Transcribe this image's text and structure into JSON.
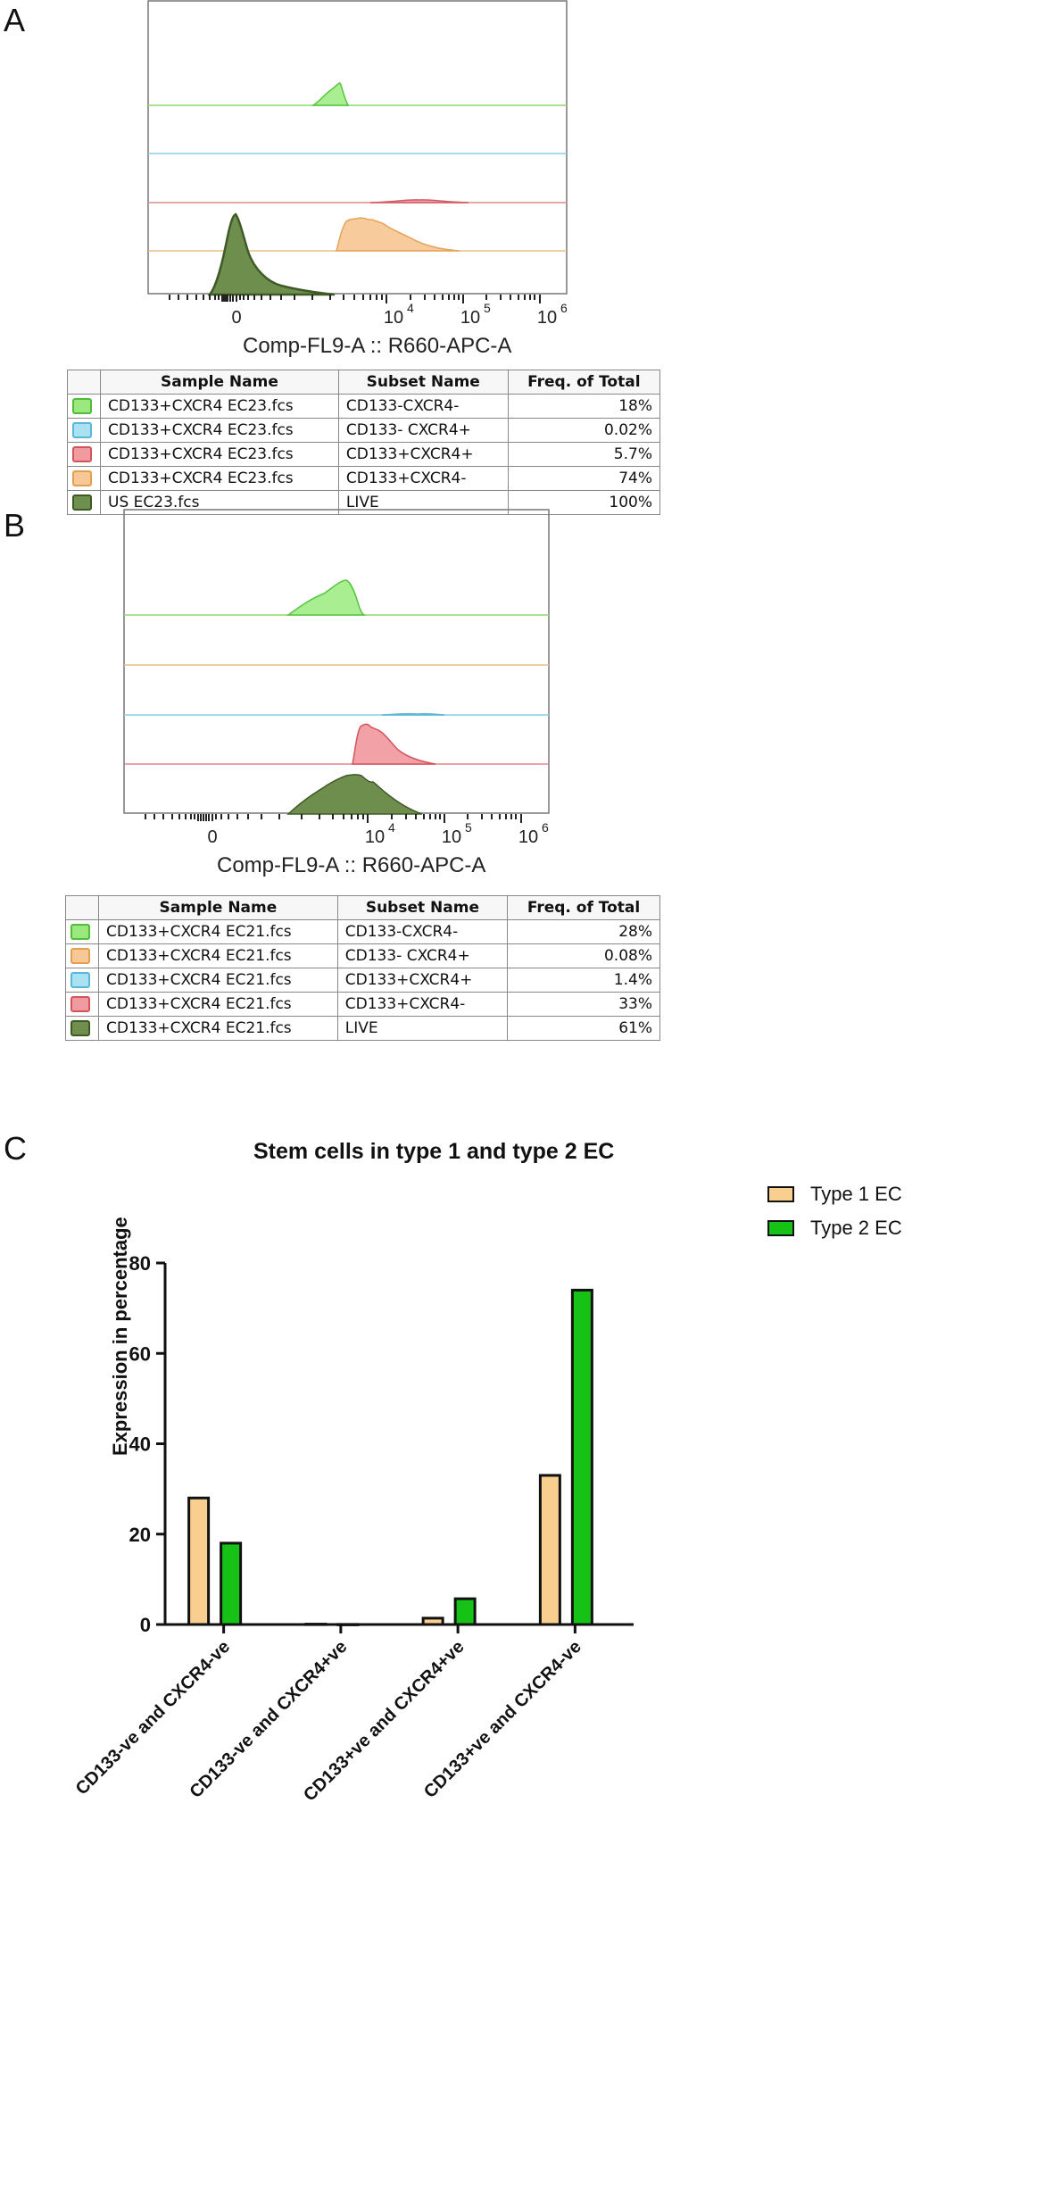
{
  "panels": {
    "A": {
      "letter": "A",
      "xlabel": "Comp-FL9-A :: R660-APC-A",
      "ticks": {
        "zero": "0",
        "e4": "10",
        "e5": "10",
        "e6": "10",
        "s4": "4",
        "s5": "5",
        "s6": "6"
      },
      "table": {
        "headers": [
          "Sample Name",
          "Subset Name",
          "Freq. of Total"
        ],
        "rows": [
          {
            "color": "#9be87f",
            "border": "#4fbd3a",
            "sample": "CD133+CXCR4 EC23.fcs",
            "subset": "CD133-CXCR4-",
            "freq": "18%"
          },
          {
            "color": "#a9e3f3",
            "border": "#5cb7d6",
            "sample": "CD133+CXCR4 EC23.fcs",
            "subset": "CD133- CXCR4+",
            "freq": "0.02%"
          },
          {
            "color": "#f09ba0",
            "border": "#d2545c",
            "sample": "CD133+CXCR4 EC23.fcs",
            "subset": "CD133+CXCR4+",
            "freq": "5.7%"
          },
          {
            "color": "#f7c795",
            "border": "#e0a050",
            "sample": "CD133+CXCR4 EC23.fcs",
            "subset": "CD133+CXCR4-",
            "freq": "74%"
          },
          {
            "color": "#6f8f4e",
            "border": "#3c5a22",
            "sample": "US EC23.fcs",
            "subset": "LIVE",
            "freq": "100%"
          }
        ]
      }
    },
    "B": {
      "letter": "B",
      "xlabel": "Comp-FL9-A :: R660-APC-A",
      "ticks": {
        "zero": "0",
        "e4": "10",
        "e5": "10",
        "e6": "10",
        "s4": "4",
        "s5": "5",
        "s6": "6"
      },
      "table": {
        "headers": [
          "Sample Name",
          "Subset Name",
          "Freq. of Total"
        ],
        "rows": [
          {
            "color": "#9be87f",
            "border": "#4fbd3a",
            "sample": "CD133+CXCR4 EC21.fcs",
            "subset": "CD133-CXCR4-",
            "freq": "28%"
          },
          {
            "color": "#f7c795",
            "border": "#e0a050",
            "sample": "CD133+CXCR4 EC21.fcs",
            "subset": "CD133- CXCR4+",
            "freq": "0.08%"
          },
          {
            "color": "#a9e3f3",
            "border": "#5cb7d6",
            "sample": "CD133+CXCR4 EC21.fcs",
            "subset": "CD133+CXCR4+",
            "freq": "1.4%"
          },
          {
            "color": "#f09ba0",
            "border": "#d2545c",
            "sample": "CD133+CXCR4 EC21.fcs",
            "subset": "CD133+CXCR4-",
            "freq": "33%"
          },
          {
            "color": "#6f8f4e",
            "border": "#3c5a22",
            "sample": "CD133+CXCR4 EC21.fcs",
            "subset": "LIVE",
            "freq": "61%"
          }
        ]
      }
    },
    "C": {
      "letter": "C"
    }
  },
  "chart_data": {
    "type": "bar",
    "title": "Stem cells in type 1 and type 2 EC",
    "xlabel": "",
    "ylabel": "Expression in percentage",
    "ylim": [
      0,
      80
    ],
    "yticks": [
      "0",
      "20",
      "40",
      "60",
      "80"
    ],
    "categories": [
      "CD133-ve and CXCR4-ve",
      "CD133-ve and CXCR4+ve",
      "CD133+ve and CXCR4+ve",
      "CD133+ve and CXCR4-ve"
    ],
    "series": [
      {
        "name": "Type 1 EC",
        "color": "#f8cf8f",
        "values": [
          28,
          0.08,
          1.4,
          33
        ]
      },
      {
        "name": "Type 2 EC",
        "color": "#17c217",
        "values": [
          18,
          0.02,
          5.7,
          74
        ]
      }
    ],
    "legend_position": "top-right"
  }
}
